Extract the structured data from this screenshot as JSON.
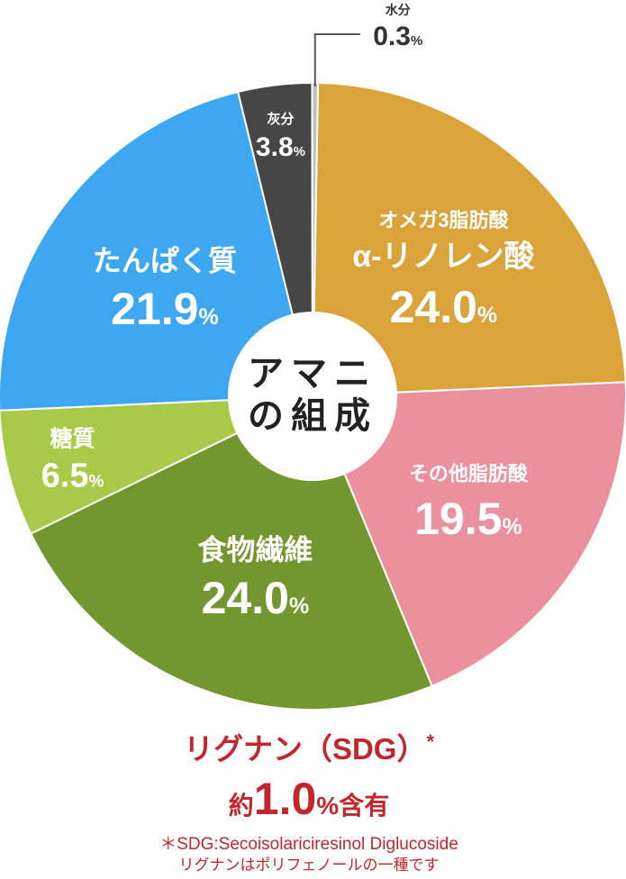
{
  "chart_data": {
    "type": "pie",
    "title": "",
    "center_label": [
      "アマニ",
      "の組成"
    ],
    "slices": [
      {
        "name": "オメガ3脂肪酸",
        "sublabel": "α-リノレン酸",
        "value": 24.0,
        "value_text": "24.0",
        "color": "#DBA43B"
      },
      {
        "name": "その他脂肪酸",
        "sublabel": "",
        "value": 19.5,
        "value_text": "19.5",
        "color": "#EA919D"
      },
      {
        "name": "食物繊維",
        "sublabel": "",
        "value": 24.0,
        "value_text": "24.0",
        "color": "#72972E"
      },
      {
        "name": "糖質",
        "sublabel": "",
        "value": 6.5,
        "value_text": "6.5",
        "color": "#A7CA49"
      },
      {
        "name": "たんぱく質",
        "sublabel": "",
        "value": 21.9,
        "value_text": "21.9",
        "color": "#3DA7F2"
      },
      {
        "name": "灰分",
        "sublabel": "",
        "value": 3.8,
        "value_text": "3.8",
        "color": "#464646"
      },
      {
        "name": "水分",
        "sublabel": "",
        "value": 0.3,
        "value_text": "0.3",
        "color": "#BFBFBF"
      }
    ],
    "unit": "%"
  },
  "footnote": {
    "lignan_title": "リグナン（SDG）",
    "asterisk": "*",
    "approx": "約",
    "lignan_value": "1.0",
    "percent": "%",
    "contains": "含有",
    "sdg_note": "＊SDG:Secoisolariciresinol Diglucoside",
    "lignan_note": "リグナンはポリフェノールの一種です",
    "accent_color": "#C1272D"
  }
}
